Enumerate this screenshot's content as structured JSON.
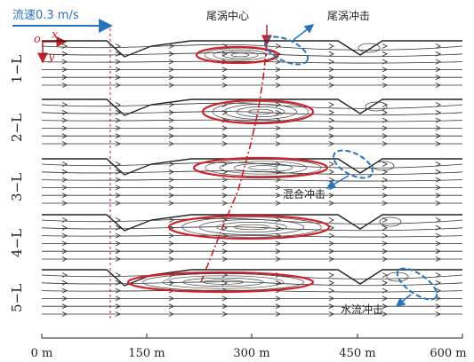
{
  "header": {
    "velocity_label": "流速0.3 m/s",
    "wake_center_label": "尾涡中心",
    "wake_impact_label": "尾涡冲击"
  },
  "axes_origin": {
    "origin": "o",
    "x": "x",
    "y": "y"
  },
  "annotations": {
    "mixed_impact": "混合冲击",
    "water_impact": "水流冲击"
  },
  "panels": [
    {
      "label": "1−L"
    },
    {
      "label": "2−L"
    },
    {
      "label": "3−L"
    },
    {
      "label": "4−L"
    },
    {
      "label": "5−L"
    }
  ],
  "scale_bar": {
    "ticks": [
      "0 m",
      "150 m",
      "300 m",
      "450 m",
      "600 m"
    ]
  },
  "colors": {
    "velocity_arrow": "#2a73b8",
    "vortex_ellipse": "#d0202a",
    "impact_ellipse": "#2a73b8",
    "center_line": "#c81e28",
    "streamline": "#222222"
  }
}
